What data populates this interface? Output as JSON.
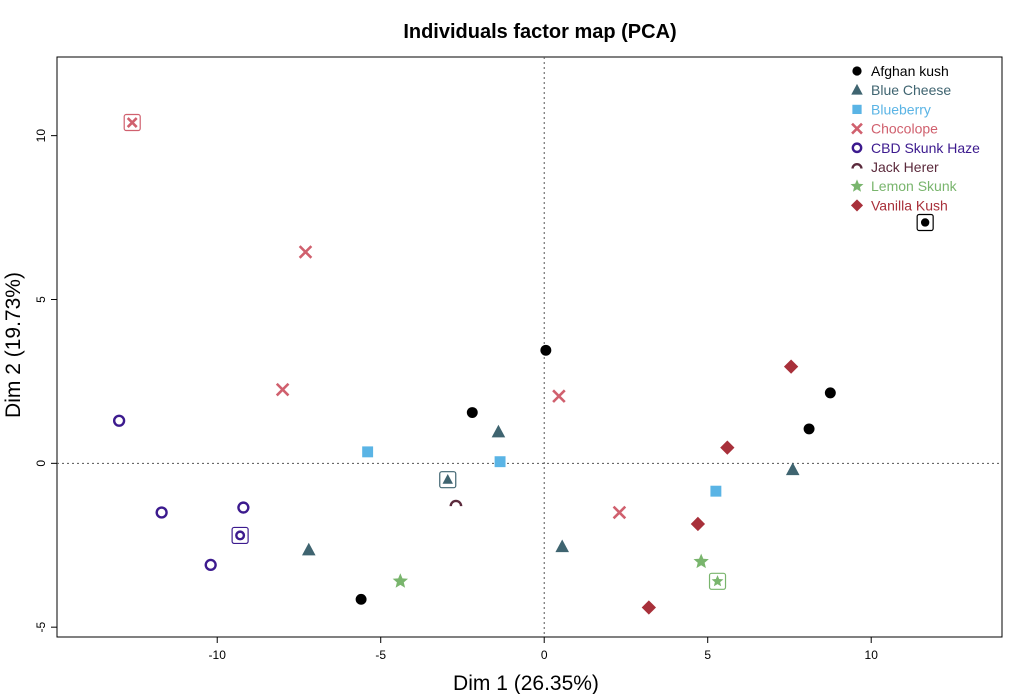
{
  "chart_data": {
    "type": "scatter",
    "title": "Individuals factor map (PCA)",
    "xlabel": "Dim 1 (26.35%)",
    "ylabel": "Dim 2 (19.73%)",
    "xlim": [
      -14.9,
      14.0
    ],
    "ylim": [
      -5.3,
      12.4
    ],
    "xticks": [
      "-10",
      "-5",
      "0",
      "5",
      "10"
    ],
    "xtick_values": [
      -10,
      -5,
      0,
      5,
      10
    ],
    "yticks": [
      "-5",
      "0",
      "5",
      "10"
    ],
    "ytick_values": [
      -5,
      0,
      5,
      10
    ],
    "reference_lines": {
      "x": 0,
      "y": 0,
      "style": "dotted"
    },
    "legend_position": "top-right",
    "series": [
      {
        "name": "Afghan kush",
        "marker": "circle",
        "color": "#000000",
        "points": [
          [
            -2.2,
            1.55
          ],
          [
            0.05,
            3.45
          ],
          [
            -5.6,
            -4.15
          ],
          [
            8.1,
            1.05
          ],
          [
            8.75,
            2.15
          ]
        ],
        "centroid": [
          11.65,
          7.35
        ]
      },
      {
        "name": "Blue Cheese",
        "marker": "triangle",
        "color": "#3f6470",
        "points": [
          [
            -1.4,
            0.95
          ],
          [
            -7.2,
            -2.65
          ],
          [
            0.55,
            -2.55
          ],
          [
            7.6,
            -0.2
          ]
        ],
        "centroid": [
          -2.95,
          -0.5
        ]
      },
      {
        "name": "Blueberry",
        "marker": "square",
        "color": "#5ab4e5",
        "points": [
          [
            -5.4,
            0.35
          ],
          [
            -1.35,
            0.05
          ],
          [
            5.25,
            -0.85
          ]
        ],
        "centroid": null
      },
      {
        "name": "Chocolope",
        "marker": "cross",
        "color": "#d0606e",
        "points": [
          [
            -7.3,
            6.45
          ],
          [
            -8.0,
            2.25
          ],
          [
            0.45,
            2.05
          ],
          [
            2.3,
            -1.5
          ]
        ],
        "centroid": [
          -12.6,
          10.4
        ]
      },
      {
        "name": "CBD Skunk  Haze",
        "marker": "ring",
        "color": "#3c1a8e",
        "points": [
          [
            -13.0,
            1.3
          ],
          [
            -11.7,
            -1.5
          ],
          [
            -9.2,
            -1.35
          ],
          [
            -10.2,
            -3.1
          ]
        ],
        "centroid": [
          -9.3,
          -2.2
        ]
      },
      {
        "name": "Jack Herer",
        "marker": "arc",
        "color": "#5b2a3c",
        "points": [
          [
            -2.7,
            -1.25
          ]
        ],
        "centroid": null
      },
      {
        "name": "Lemon Skunk",
        "marker": "star",
        "color": "#79b56d",
        "points": [
          [
            -4.4,
            -3.6
          ],
          [
            4.8,
            -3.0
          ]
        ],
        "centroid": [
          5.3,
          -3.6
        ]
      },
      {
        "name": "Vanilla Kush",
        "marker": "diamond",
        "color": "#a8303a",
        "points": [
          [
            7.55,
            2.95
          ],
          [
            5.6,
            0.48
          ],
          [
            4.7,
            -1.85
          ],
          [
            3.2,
            -4.4
          ]
        ],
        "centroid": null
      }
    ]
  }
}
